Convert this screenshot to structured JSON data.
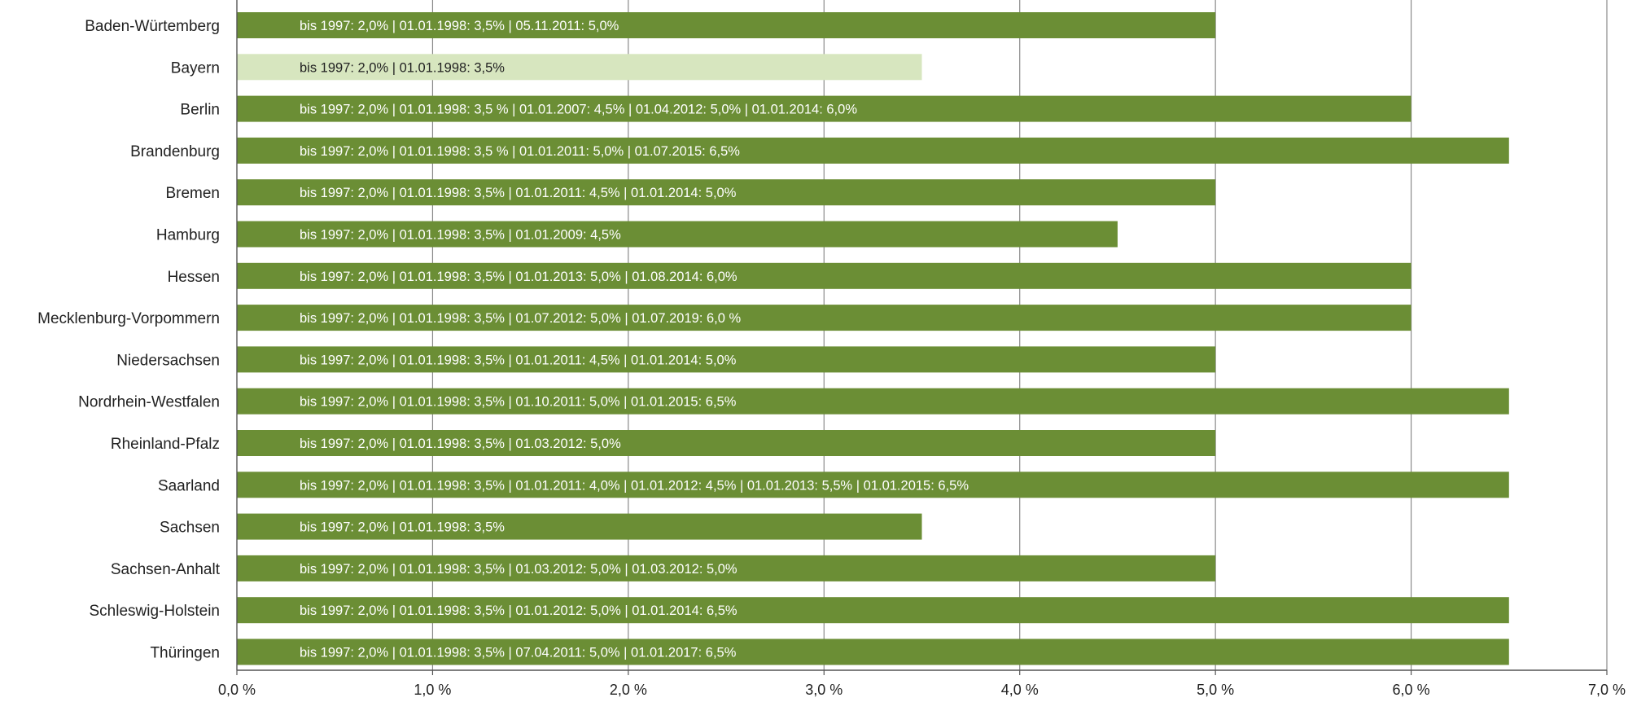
{
  "chart_data": {
    "type": "bar",
    "orientation": "horizontal",
    "xlim": [
      0,
      7
    ],
    "x_tick_values": [
      0,
      1,
      2,
      3,
      4,
      5,
      6,
      7
    ],
    "x_tick_labels": [
      "0,0 %",
      "1,0 %",
      "2,0 %",
      "3,0 %",
      "4,0 %",
      "5,0 %",
      "6,0 %",
      "7,0 %"
    ],
    "grid": "vertical",
    "colors": {
      "bar": "#6b8e35",
      "bar_highlight": "#d7e6bf",
      "grid": "#8a8a8a"
    },
    "bars": [
      {
        "category": "Baden-Würtemberg",
        "value": 5.0,
        "label": "bis 1997: 2,0% | 01.01.1998: 3,5% | 05.11.2011: 5,0%"
      },
      {
        "category": "Bayern",
        "value": 3.5,
        "label": "bis 1997: 2,0% | 01.01.1998: 3,5%",
        "highlight": true
      },
      {
        "category": "Berlin",
        "value": 6.0,
        "label": "bis 1997: 2,0% | 01.01.1998: 3,5 % | 01.01.2007: 4,5% | 01.04.2012: 5,0% | 01.01.2014: 6,0%"
      },
      {
        "category": "Brandenburg",
        "value": 6.5,
        "label": "bis 1997: 2,0% | 01.01.1998: 3,5 % | 01.01.2011: 5,0% | 01.07.2015: 6,5%"
      },
      {
        "category": "Bremen",
        "value": 5.0,
        "label": "bis 1997: 2,0% | 01.01.1998: 3,5% | 01.01.2011: 4,5% | 01.01.2014: 5,0%"
      },
      {
        "category": "Hamburg",
        "value": 4.5,
        "label": "bis 1997: 2,0% | 01.01.1998: 3,5% | 01.01.2009: 4,5%"
      },
      {
        "category": "Hessen",
        "value": 6.0,
        "label": "bis 1997: 2,0% | 01.01.1998: 3,5% | 01.01.2013: 5,0% | 01.08.2014: 6,0%"
      },
      {
        "category": "Mecklenburg-Vorpommern",
        "value": 6.0,
        "label": "bis 1997: 2,0% | 01.01.1998: 3,5% | 01.07.2012: 5,0% | 01.07.2019: 6,0 %"
      },
      {
        "category": "Niedersachsen",
        "value": 5.0,
        "label": "bis 1997: 2,0% | 01.01.1998: 3,5% | 01.01.2011: 4,5% | 01.01.2014: 5,0%"
      },
      {
        "category": "Nordrhein-Westfalen",
        "value": 6.5,
        "label": "bis 1997: 2,0% | 01.01.1998: 3,5% | 01.10.2011: 5,0% | 01.01.2015: 6,5%"
      },
      {
        "category": "Rheinland-Pfalz",
        "value": 5.0,
        "label": "bis 1997: 2,0% | 01.01.1998: 3,5% | 01.03.2012: 5,0%"
      },
      {
        "category": "Saarland",
        "value": 6.5,
        "label": "bis 1997: 2,0% | 01.01.1998: 3,5% | 01.01.2011: 4,0% | 01.01.2012: 4,5% | 01.01.2013: 5,5% | 01.01.2015: 6,5%"
      },
      {
        "category": "Sachsen",
        "value": 3.5,
        "label": "bis 1997: 2,0% | 01.01.1998: 3,5%"
      },
      {
        "category": "Sachsen-Anhalt",
        "value": 5.0,
        "label": "bis 1997: 2,0% | 01.01.1998: 3,5% | 01.03.2012: 5,0% | 01.03.2012: 5,0%"
      },
      {
        "category": "Schleswig-Holstein",
        "value": 6.5,
        "label": "bis 1997: 2,0% | 01.01.1998: 3,5% | 01.01.2012: 5,0% | 01.01.2014: 6,5%"
      },
      {
        "category": "Thüringen",
        "value": 6.5,
        "label": "bis 1997: 2,0% | 01.01.1998: 3,5% | 07.04.2011: 5,0% | 01.01.2017: 6,5%"
      }
    ]
  }
}
